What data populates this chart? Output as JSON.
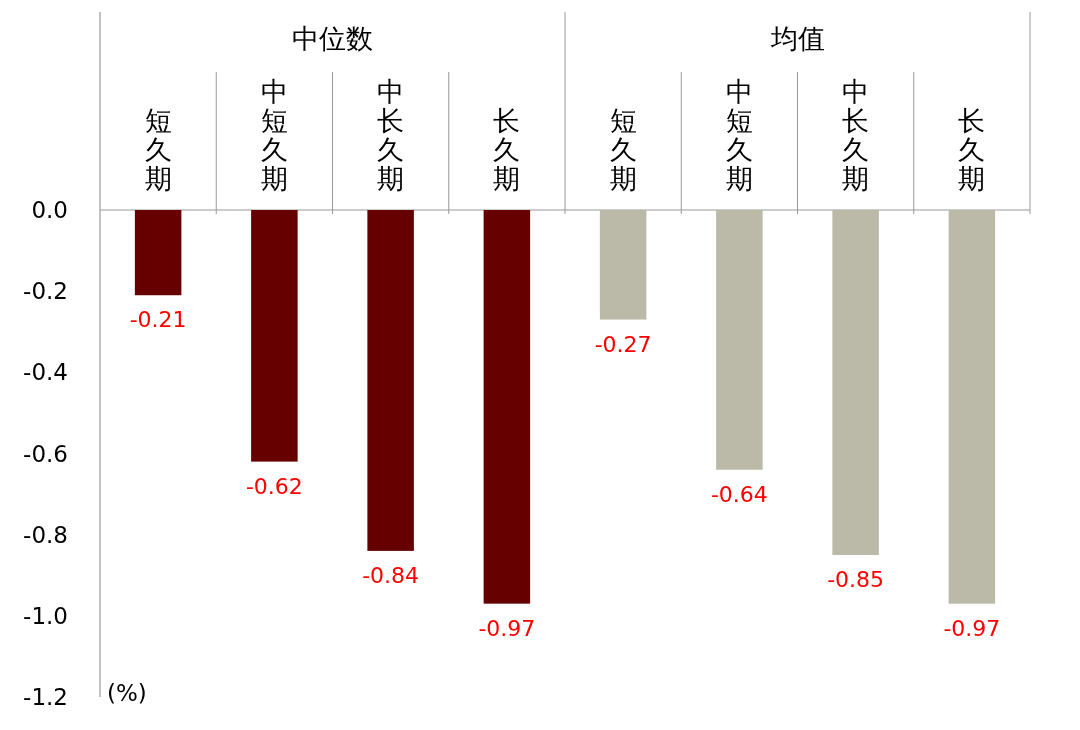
{
  "chart_data": {
    "type": "bar",
    "ylabel": "(%)",
    "annotations": [
      "中位数",
      "均值"
    ],
    "categories": [
      "短久期",
      "中短久期",
      "中长久期",
      "长久期",
      "短久期",
      "中短久期",
      "中长久期",
      "长久期"
    ],
    "values": [
      -0.21,
      -0.62,
      -0.84,
      -0.97,
      -0.27,
      -0.64,
      -0.85,
      -0.97
    ],
    "colors": [
      "#660000",
      "#660000",
      "#660000",
      "#660000",
      "#bbbaa8",
      "#bbbaa8",
      "#bbbaa8",
      "#bbbaa8"
    ],
    "ylim": [
      -1.2,
      0
    ],
    "yticks": [
      {
        "value": 0,
        "label": "0.0"
      },
      {
        "value": -0.2,
        "label": "-0.2"
      },
      {
        "value": -0.4,
        "label": "-0.4"
      },
      {
        "value": -0.6,
        "label": "-0.6"
      },
      {
        "value": -0.8,
        "label": "-0.8"
      },
      {
        "value": -1.0,
        "label": "-1.0"
      },
      {
        "value": -1.2,
        "label": "-1.2"
      }
    ],
    "data_labels": true
  }
}
